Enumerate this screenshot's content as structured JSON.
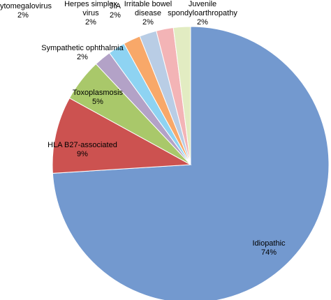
{
  "chart_data": {
    "type": "pie",
    "categories": [
      "Idiopathic",
      "HLA B27-associated",
      "Toxoplasmosis",
      "Sympathetic ophthalmia",
      "Cytomegalovirus",
      "Herpes simplex virus",
      "JIA",
      "Irritable bowel disease",
      "Juvenile spondyloarthropathy"
    ],
    "values": [
      74,
      9,
      5,
      2,
      2,
      2,
      2,
      2,
      2
    ],
    "value_labels": [
      "74%",
      "9%",
      "5%",
      "2%",
      "2%",
      "2%",
      "2%",
      "2%",
      "2%"
    ],
    "colors": [
      "#7399cf",
      "#cc5250",
      "#a9c86a",
      "#b3a2c7",
      "#8ed3f2",
      "#f8a869",
      "#b9cde5",
      "#f3b4b6",
      "#e2ecc2"
    ]
  }
}
